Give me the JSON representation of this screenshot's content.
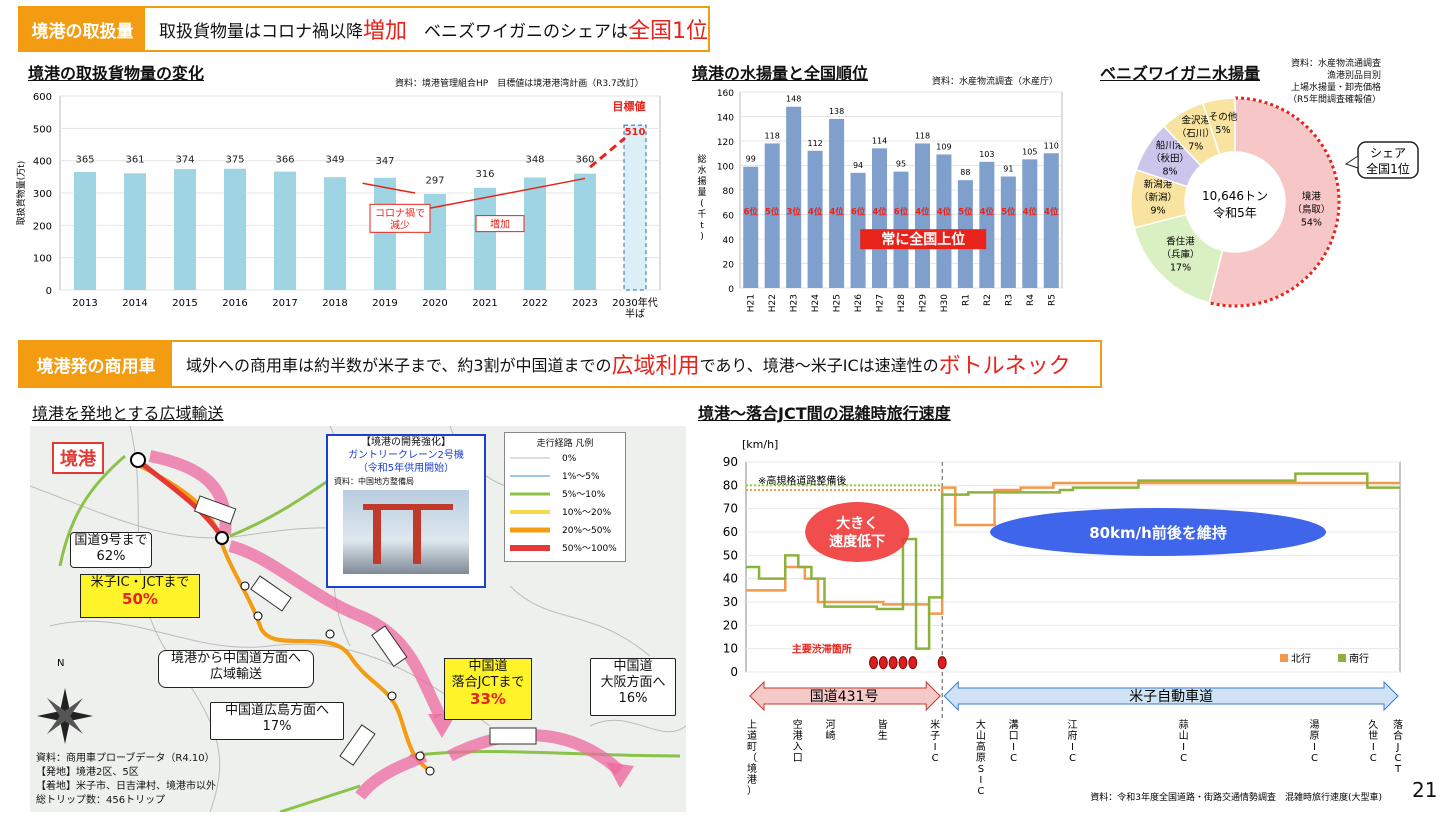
{
  "banner1": {
    "tag": "境港の取扱量",
    "text_a": "取扱貨物量はコロナ禍以降",
    "hl_a": "増加",
    "text_b": "　ベニズワイガニのシェアは",
    "hl_b": "全国1位"
  },
  "banner2": {
    "tag": "境港発の商用車",
    "text_a": "域外への商用車は約半数が米子まで、約3割が中国道までの",
    "hl_a": "広域利用",
    "text_b": "であり、境港～米子ICは速達性の",
    "hl_b": "ボトルネック"
  },
  "cargo": {
    "title": "境港の取扱貨物量の変化",
    "source": "資料：境港管理組合HP　目標値は境港港湾計画（R3.7改訂）",
    "target_label": "目標値",
    "covid_note": "コロナ禍で\n減少",
    "increase_note": "増加"
  },
  "catch": {
    "title": "境港の水揚量と全国順位",
    "source": "資料：水産物流調査（水産庁）",
    "banner": "常に全国上位"
  },
  "crab": {
    "title": "ベニズワイガニ水揚量",
    "source_lines": [
      "資料：水産物流通調査",
      "漁港別品目別",
      "上場水揚量・卸売価格",
      "（R5年間調査確報値）"
    ],
    "center_line1": "10,646トン",
    "center_line2": "令和5年",
    "share_line1": "シェア",
    "share_line2": "全国1位"
  },
  "map": {
    "title": "境港を発地とする広域輸送",
    "port_label": "境港",
    "crane_title": "【境港の開発強化】",
    "crane_sub1": "ガントリークレーン2号機",
    "crane_sub2": "（令和5年供用開始）",
    "crane_src": "資料：中国地方整備局",
    "legend_title": "走行経路 凡例",
    "road9_line1": "国道9号まで",
    "road9_line2": "62%",
    "yonago_line1": "米子IC・JCTまで",
    "yonago_line2": "50%",
    "chugoku_line1": "境港から中国道方面へ",
    "chugoku_line2": "広域輸送",
    "hiroshima_line1": "中国道広島方面へ",
    "hiroshima_line2": "17%",
    "ochiai_line1": "中国道",
    "ochiai_line2": "落合JCTまで",
    "ochiai_line3": "33%",
    "osaka_line1": "中国道",
    "osaka_line2": "大阪方面へ",
    "osaka_line3": "16%",
    "source_lines": [
      "資料：商用車プローブデータ（R4.10）",
      "【発地】境港2区、5区",
      "【着地】米子市、日吉津村、境港市以外",
      "総トリップ数：456トリップ"
    ]
  },
  "speed": {
    "title": "境港～落合JCT間の混雑時旅行速度",
    "unit": "[km/h]",
    "note": "※高規格道路整備後",
    "bubble_slow_line1": "大きく",
    "bubble_slow_line2": "速度低下",
    "bubble_keep": "80km/h前後を維持",
    "bottleneck": "主要渋滞箇所",
    "route1": "国道431号",
    "route2": "米子自動車道",
    "source": "資料：令和3年度全国道路・街路交通情勢調査　混雑時旅行速度(大型車)"
  },
  "page_number": "21",
  "chart_data": [
    {
      "type": "bar",
      "title": "境港の取扱貨物量の変化",
      "ylabel": "取扱貨物量(万t)",
      "ylim": [
        0,
        600
      ],
      "yticks": [
        0,
        100,
        200,
        300,
        400,
        500,
        600
      ],
      "categories": [
        "2013",
        "2014",
        "2015",
        "2016",
        "2017",
        "2018",
        "2019",
        "2020",
        "2021",
        "2022",
        "2023",
        "2030年代\n半ば"
      ],
      "values": [
        365,
        361,
        374,
        375,
        366,
        349,
        347,
        297,
        316,
        348,
        360,
        510
      ],
      "colors": {
        "bar": "#9fd5e3",
        "target": "#dceff6"
      }
    },
    {
      "type": "bar",
      "title": "境港の水揚量と全国順位",
      "ylabel": "総水揚量(千t)",
      "ylim": [
        0,
        160
      ],
      "yticks": [
        0,
        20,
        40,
        60,
        80,
        100,
        120,
        140,
        160
      ],
      "categories": [
        "H21",
        "H22",
        "H23",
        "H24",
        "H25",
        "H26",
        "H27",
        "H28",
        "H29",
        "H30",
        "R1",
        "R2",
        "R3",
        "R4",
        "R5"
      ],
      "values": [
        99,
        118,
        148,
        112,
        138,
        94,
        114,
        95,
        118,
        109,
        88,
        103,
        91,
        105,
        110
      ],
      "ranks": [
        "6位",
        "5位",
        "3位",
        "4位",
        "4位",
        "6位",
        "4位",
        "6位",
        "4位",
        "4位",
        "5位",
        "4位",
        "5位",
        "4位",
        "4位"
      ],
      "colors": {
        "bar": "#7f9fcc",
        "rank": "#e8231b"
      }
    },
    {
      "type": "pie",
      "title": "ベニズワイガニ水揚量",
      "slices": [
        {
          "label": "境港（鳥取）",
          "value": 54,
          "color": "#f7c6c6"
        },
        {
          "label": "香住港（兵庫）",
          "value": 17,
          "color": "#d9f0c2"
        },
        {
          "label": "新潟港（新潟）",
          "value": 9,
          "color": "#f8e4a0"
        },
        {
          "label": "船川港（秋田）",
          "value": 8,
          "color": "#ccc6ec"
        },
        {
          "label": "金沢港（石川）",
          "value": 7,
          "color": "#f8e4a0"
        },
        {
          "label": "その他",
          "value": 5,
          "color": "#f8e4a0"
        }
      ]
    },
    {
      "type": "line",
      "title": "境港～落合JCT間の混雑時旅行速度",
      "ylabel": "[km/h]",
      "ylim": [
        0,
        90
      ],
      "yticks": [
        0,
        10,
        20,
        30,
        40,
        50,
        60,
        70,
        80,
        90
      ],
      "x_labels": [
        "上道町（境港）",
        "空港入口",
        "河崎",
        "皆生",
        "米子IC",
        "大山高原SIC",
        "溝口IC",
        "江府IC",
        "蒜山IC",
        "湯原IC",
        "久世IC",
        "落合JCT"
      ],
      "series": [
        {
          "name": "北行",
          "color": "#f39a4a",
          "x": [
            0,
            0.06,
            0.06,
            0.09,
            0.09,
            0.11,
            0.11,
            0.21,
            0.21,
            0.28,
            0.28,
            0.3,
            0.3,
            0.32,
            0.32,
            0.38,
            0.38,
            0.42,
            0.42,
            0.47,
            0.47,
            0.95,
            0.95,
            1.0
          ],
          "y": [
            35,
            35,
            45,
            45,
            40,
            40,
            30,
            30,
            29,
            29,
            25,
            25,
            79,
            79,
            63,
            63,
            78,
            78,
            79,
            79,
            81,
            81,
            81,
            81
          ]
        },
        {
          "name": "南行",
          "color": "#8bb33c",
          "x": [
            0,
            0.02,
            0.02,
            0.06,
            0.06,
            0.08,
            0.08,
            0.1,
            0.1,
            0.12,
            0.12,
            0.2,
            0.2,
            0.24,
            0.24,
            0.26,
            0.26,
            0.28,
            0.28,
            0.3,
            0.3,
            0.34,
            0.34,
            0.48,
            0.48,
            0.5,
            0.5,
            0.6,
            0.6,
            0.84,
            0.84,
            0.95,
            0.95,
            1.0
          ],
          "y": [
            45,
            45,
            40,
            40,
            50,
            50,
            45,
            45,
            40,
            40,
            28,
            28,
            27,
            27,
            57,
            57,
            10,
            10,
            32,
            32,
            76,
            76,
            77,
            77,
            78,
            78,
            79,
            79,
            82,
            82,
            85,
            85,
            79,
            79
          ]
        }
      ]
    }
  ]
}
